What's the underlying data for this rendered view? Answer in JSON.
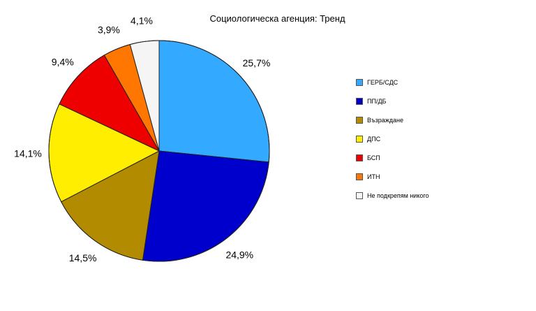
{
  "chart_data": {
    "type": "pie",
    "title": "Социологическа агенция: Тренд",
    "slices": [
      {
        "name": "ГЕРБ/СДС",
        "value": 25.7,
        "label": "25,7%",
        "color": "#33aaff"
      },
      {
        "name": "ПП/ДБ",
        "value": 24.9,
        "label": "24,9%",
        "color": "#0000cc"
      },
      {
        "name": "Възраждане",
        "value": 14.5,
        "label": "14,5%",
        "color": "#b38b00"
      },
      {
        "name": "ДПС",
        "value": 14.1,
        "label": "14,1%",
        "color": "#ffee00"
      },
      {
        "name": "БСП",
        "value": 9.4,
        "label": "9,4%",
        "color": "#ee0000"
      },
      {
        "name": "ИТН",
        "value": 3.9,
        "label": "3,9%",
        "color": "#ff7700"
      },
      {
        "name": "Не подкрепям никого",
        "value": 4.1,
        "label": "4,1%",
        "color": "#f5f5f5"
      }
    ],
    "legend_position": "right"
  }
}
